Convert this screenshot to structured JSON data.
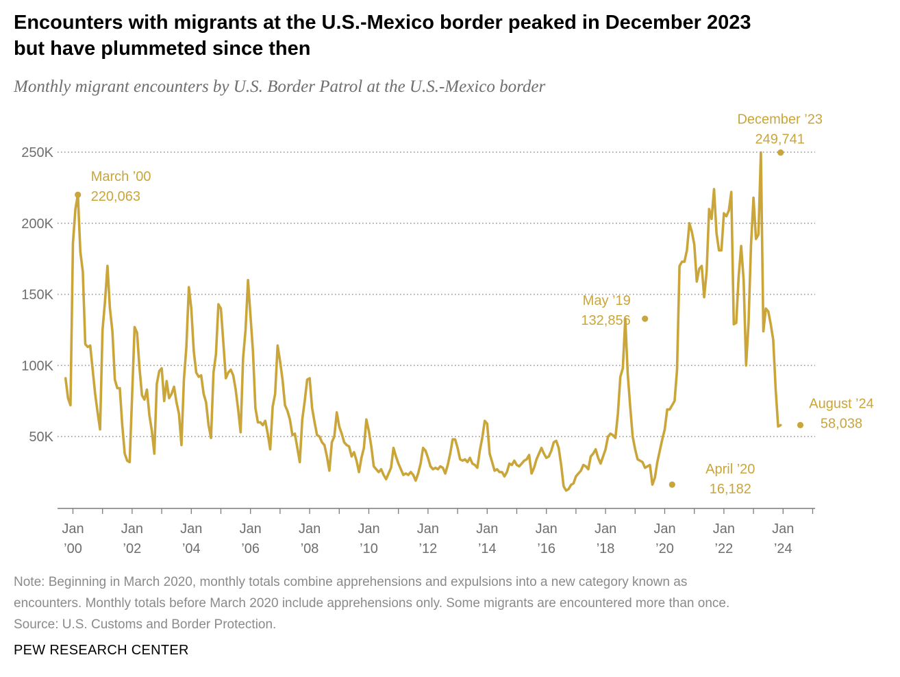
{
  "header": {
    "title_line1": "Encounters with migrants at the U.S.-Mexico border peaked in December 2023",
    "title_line2": "but have plummeted since then",
    "subtitle": "Monthly migrant encounters by U.S. Border Patrol at the U.S.-Mexico border"
  },
  "footer": {
    "note_line1": "Note: Beginning in March 2020, monthly totals combine apprehensions and expulsions into a new category known as",
    "note_line2": "encounters. Monthly totals before March 2020 include apprehensions only. Some migrants are encountered more than once.",
    "source": "Source: U.S. Customs and Border Protection.",
    "brand": "PEW RESEARCH CENTER"
  },
  "colors": {
    "line": "#c9a53a",
    "grid": "#9a9a9a",
    "axis": "#7a7a7a",
    "text": "#6e6e6e"
  },
  "chart_data": {
    "type": "line",
    "title": "Encounters with migrants at the U.S.-Mexico border peaked in December 2023 but have plummeted since then",
    "subtitle": "Monthly migrant encounters by U.S. Border Patrol at the U.S.-Mexico border",
    "xlabel": "",
    "ylabel": "",
    "ylim": [
      0,
      250000
    ],
    "grid": true,
    "y_ticks": [
      {
        "value": 50000,
        "label": "50K"
      },
      {
        "value": 100000,
        "label": "100K"
      },
      {
        "value": 150000,
        "label": "150K"
      },
      {
        "value": 200000,
        "label": "200K"
      },
      {
        "value": 250000,
        "label": "250K"
      }
    ],
    "x_ticks": [
      {
        "date": "2000-01",
        "line1": "Jan",
        "line2": "’00"
      },
      {
        "date": "2002-01",
        "line1": "Jan",
        "line2": "’02"
      },
      {
        "date": "2004-01",
        "line1": "Jan",
        "line2": "’04"
      },
      {
        "date": "2006-01",
        "line1": "Jan",
        "line2": "’06"
      },
      {
        "date": "2008-01",
        "line1": "Jan",
        "line2": "’08"
      },
      {
        "date": "2010-01",
        "line1": "Jan",
        "line2": "’10"
      },
      {
        "date": "2012-01",
        "line1": "Jan",
        "line2": "’12"
      },
      {
        "date": "2014-01",
        "line1": "Jan",
        "line2": "’14"
      },
      {
        "date": "2016-01",
        "line1": "Jan",
        "line2": "’16"
      },
      {
        "date": "2018-01",
        "line1": "Jan",
        "line2": "’18"
      },
      {
        "date": "2020-01",
        "line1": "Jan",
        "line2": "’20"
      },
      {
        "date": "2022-01",
        "line1": "Jan",
        "line2": "’22"
      },
      {
        "date": "2024-01",
        "line1": "Jan",
        "line2": "’24"
      }
    ],
    "annotations": [
      {
        "date": "2000-03",
        "value": 220063,
        "label": "March ’00",
        "value_label": "220,063"
      },
      {
        "date": "2019-05",
        "value": 132856,
        "label": "May ’19",
        "value_label": "132,856"
      },
      {
        "date": "2020-04",
        "value": 16182,
        "label": "April ’20",
        "value_label": "16,182"
      },
      {
        "date": "2023-12",
        "value": 249741,
        "label": "December ’23",
        "value_label": "249,741"
      },
      {
        "date": "2024-08",
        "value": 58038,
        "label": "August ’24",
        "value_label": "58,038"
      }
    ],
    "series": [
      {
        "start": "1999-10",
        "values": [
          91000,
          77000,
          72000,
          186000,
          210000,
          220063,
          180000,
          166000,
          115000,
          113000,
          114000,
          97000,
          80000,
          67000,
          55000,
          125000,
          145000,
          170000,
          140000,
          124000,
          90000,
          84000,
          84000,
          58000,
          38000,
          33000,
          32000,
          79000,
          127000,
          123000,
          98000,
          79000,
          76000,
          83000,
          65000,
          54000,
          38000,
          87000,
          96000,
          98000,
          75000,
          89000,
          77000,
          80000,
          85000,
          74000,
          66000,
          44000,
          90000,
          113000,
          155000,
          140000,
          110000,
          95000,
          92000,
          93000,
          80000,
          74000,
          58000,
          49000,
          95000,
          108000,
          143000,
          140000,
          116000,
          91000,
          95000,
          97000,
          93000,
          83000,
          69000,
          53000,
          105000,
          125000,
          160000,
          135000,
          110000,
          70000,
          60000,
          60000,
          58000,
          61000,
          52000,
          41000,
          71000,
          80000,
          114000,
          103000,
          90000,
          72000,
          68000,
          62000,
          51000,
          52000,
          42000,
          32000,
          62000,
          75000,
          90000,
          91000,
          70000,
          60000,
          51000,
          50000,
          46000,
          44000,
          36000,
          26000,
          46000,
          50000,
          67000,
          57000,
          52000,
          46000,
          44000,
          43000,
          36000,
          39000,
          33000,
          25000,
          35000,
          42000,
          62000,
          54000,
          43000,
          29000,
          27000,
          25000,
          27000,
          23000,
          20000,
          24000,
          28000,
          42000,
          36000,
          31000,
          27000,
          23000,
          24000,
          23000,
          25000,
          23000,
          19000,
          24000,
          31000,
          42000,
          40000,
          35000,
          29000,
          27000,
          28000,
          27000,
          29000,
          28000,
          24000,
          30000,
          38000,
          48000,
          48000,
          42000,
          34000,
          33000,
          34000,
          32000,
          35000,
          31000,
          30000,
          28000,
          40000,
          49000,
          61000,
          59000,
          38000,
          32000,
          26000,
          27000,
          25000,
          25000,
          22000,
          25000,
          31000,
          30000,
          33000,
          30000,
          29000,
          31000,
          33000,
          34000,
          37000,
          24000,
          28000,
          34000,
          38000,
          42000,
          38000,
          35000,
          36000,
          40000,
          46000,
          47000,
          42000,
          30000,
          15000,
          12000,
          13000,
          16000,
          17000,
          22000,
          24000,
          26000,
          30000,
          29000,
          27000,
          36000,
          38000,
          41000,
          35000,
          31000,
          36000,
          41000,
          50000,
          52000,
          51000,
          49000,
          66000,
          92000,
          98000,
          132856,
          94000,
          71000,
          50000,
          41000,
          34000,
          33000,
          32000,
          28000,
          29000,
          30000,
          16182,
          21000,
          32000,
          40000,
          48000,
          55000,
          69000,
          69000,
          72000,
          75000,
          97000,
          170000,
          173000,
          173000,
          181000,
          200000,
          194000,
          185000,
          159000,
          168000,
          170000,
          148000,
          166000,
          210000,
          203000,
          224000,
          193000,
          181000,
          181000,
          207000,
          205000,
          209000,
          222000,
          129000,
          130000,
          163000,
          184000,
          160000,
          100000,
          130000,
          185000,
          218000,
          189000,
          192000,
          249741,
          124000,
          140000,
          138000,
          129000,
          118000,
          83000,
          57000,
          58038
        ]
      }
    ]
  }
}
